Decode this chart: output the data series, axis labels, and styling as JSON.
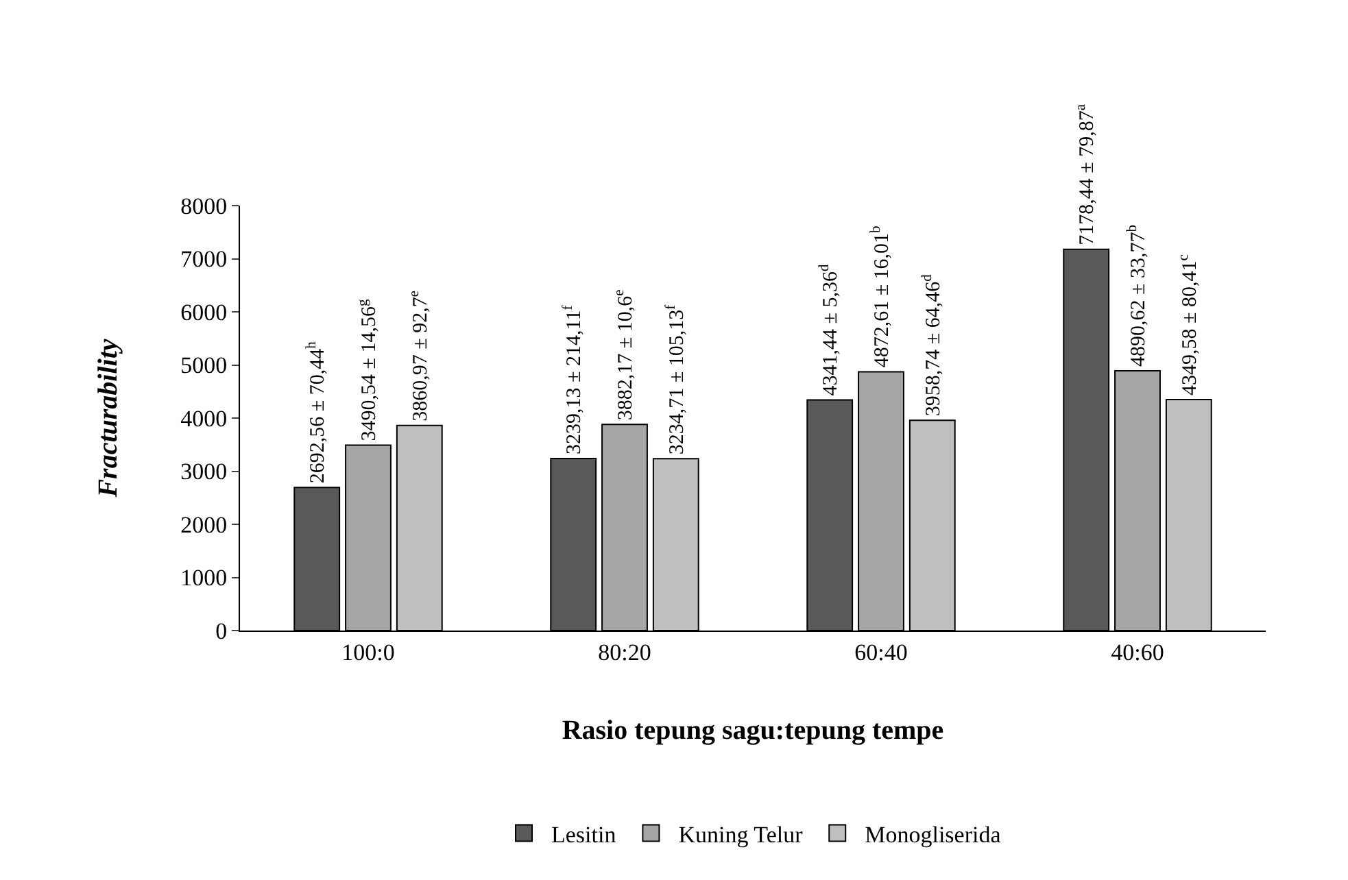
{
  "chart_data": {
    "type": "bar",
    "xlabel": "Rasio tepung sagu:tepung tempe",
    "ylabel": "Fracturability",
    "categories": [
      "100:0",
      "80:20",
      "60:40",
      "40:60"
    ],
    "series": [
      {
        "name": "Lesitin",
        "color": "#595959",
        "values": [
          2692.56,
          3239.13,
          4341.44,
          7178.44
        ],
        "value_labels": [
          "2692,56 ± 70,44$^{h}$",
          "3239,13 ± 214,11$^{f}$",
          "4341,44 ± 5,36$^{d}$",
          "7178,44 ± 79,87$^{a}$"
        ]
      },
      {
        "name": "Kuning Telur",
        "color": "#a6a6a6",
        "values": [
          3490.54,
          3882.17,
          4872.61,
          4890.62
        ],
        "value_labels": [
          "3490,54 ± 14,56$^{g}$",
          "3882,17 ± 10,6$^{e}$",
          "4872,61 ± 16,01$^{b}$",
          "4890,62 ± 33,77$^{b}$"
        ]
      },
      {
        "name": "Monogliserida",
        "color": "#bfbfbf",
        "values": [
          3860.97,
          3234.71,
          3958.74,
          4349.58
        ],
        "value_labels": [
          "3860,97 ± 92,7$^{e}$",
          "3234,71 ± 105,13$^{f}$",
          "3958,74 ± 64,46$^{d}$",
          "4349,58 ± 80,41$^{c}$"
        ]
      }
    ],
    "ylim": [
      0,
      8000
    ],
    "yticks": [
      0,
      1000,
      2000,
      3000,
      4000,
      5000,
      6000,
      7000,
      8000
    ],
    "grid": false,
    "legend": "bottom"
  }
}
